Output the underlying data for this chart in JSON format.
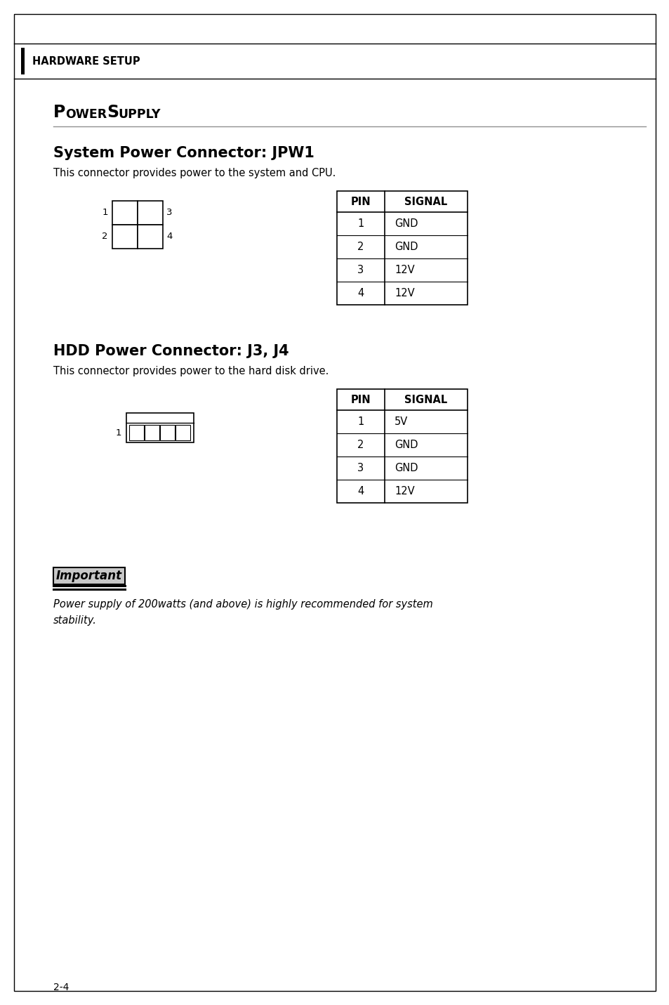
{
  "page_bg": "#ffffff",
  "border_color": "#000000",
  "header_text": "HARDWARE SETUP",
  "jpw1_title": "System Power Connector: JPW1",
  "jpw1_desc": "This connector provides power to the system and CPU.",
  "jpw1_pins": [
    1,
    2,
    3,
    4
  ],
  "jpw1_signals": [
    "GND",
    "GND",
    "12V",
    "12V"
  ],
  "j3j4_title": "HDD Power Connector: J3, J4",
  "j3j4_desc": "This connector provides power to the hard disk drive.",
  "j3j4_pins": [
    1,
    2,
    3,
    4
  ],
  "j3j4_signals": [
    "5V",
    "GND",
    "GND",
    "12V"
  ],
  "important_text": "Important",
  "note_text": "Power supply of 200watts (and above) is highly recommended for system\nstability.",
  "footer_text": "2-4",
  "fig_w": 9.54,
  "fig_h": 14.31,
  "dpi": 100
}
